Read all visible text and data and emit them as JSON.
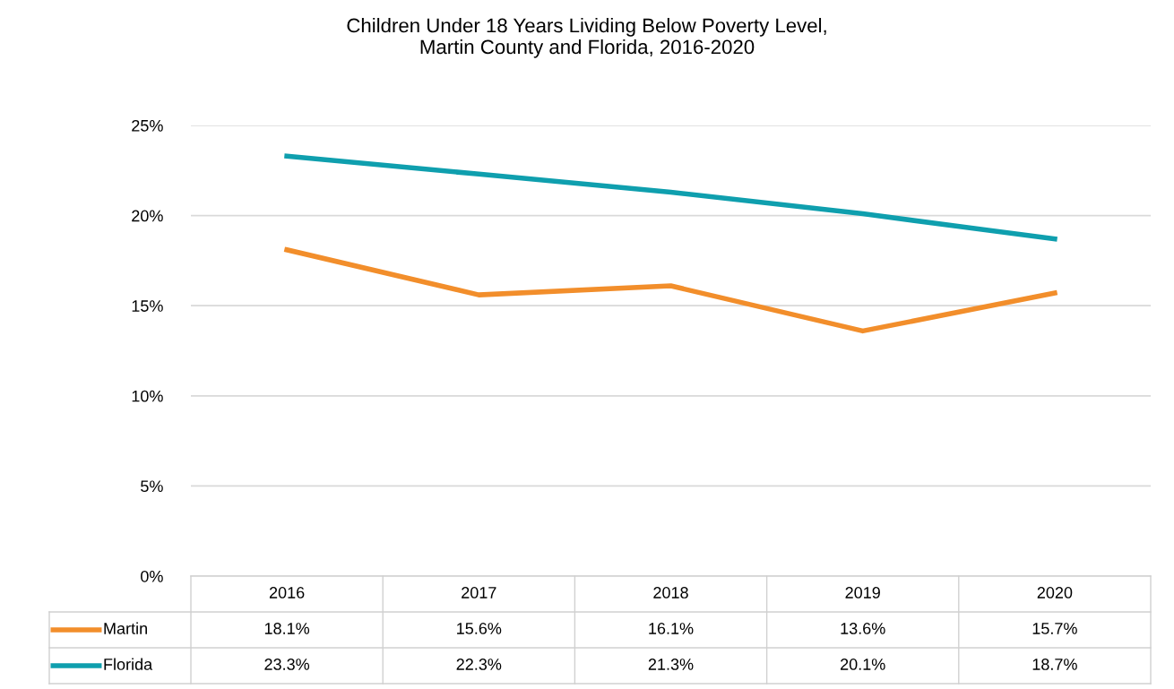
{
  "chart_data": {
    "type": "line",
    "title": "Children Under 18 Years Lividing Below Poverty Level,\nMartin County and Florida, 2016-2020",
    "categories": [
      "2016",
      "2017",
      "2018",
      "2019",
      "2020"
    ],
    "series": [
      {
        "name": "Martin",
        "color": "#f28e2b",
        "values": [
          18.1,
          15.6,
          16.1,
          13.6,
          15.7
        ],
        "value_labels": [
          "18.1%",
          "15.6%",
          "16.1%",
          "13.6%",
          "15.7%"
        ]
      },
      {
        "name": "Florida",
        "color": "#0f9fae",
        "values": [
          23.3,
          22.3,
          21.3,
          20.1,
          18.7
        ],
        "value_labels": [
          "23.3%",
          "22.3%",
          "21.3%",
          "20.1%",
          "18.7%"
        ]
      }
    ],
    "ylim": [
      0,
      25
    ],
    "yticks": [
      {
        "value": 0,
        "label": "0%"
      },
      {
        "value": 5,
        "label": "5%"
      },
      {
        "value": 10,
        "label": "10%"
      },
      {
        "value": 15,
        "label": "15%"
      },
      {
        "value": 20,
        "label": "20%"
      },
      {
        "value": 25,
        "label": "25%"
      }
    ],
    "grid": "y",
    "legend": "bottom",
    "marker": "none",
    "line_style": "solid"
  }
}
